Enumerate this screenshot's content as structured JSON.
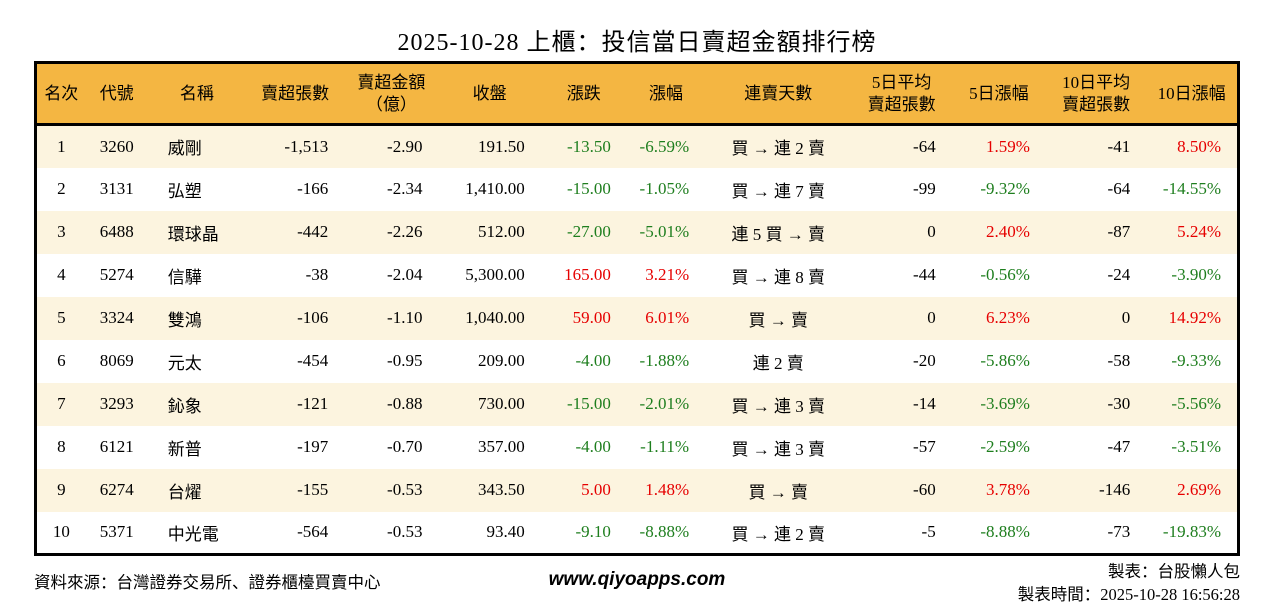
{
  "page": {
    "title": "2025-10-28 上櫃：投信當日賣超金額排行榜"
  },
  "colors": {
    "header_bg": "#F4B642",
    "row_alt_bg": "#FCF4DF",
    "up_red": "#E60000",
    "down_green": "#1E7E1E",
    "border": "#000000"
  },
  "table": {
    "columns": [
      {
        "key": "rank",
        "label": "名次",
        "align": "center"
      },
      {
        "key": "code",
        "label": "代號",
        "align": "center"
      },
      {
        "key": "name",
        "label": "名稱",
        "align": "left"
      },
      {
        "key": "net-sell-volume",
        "label": "賣超張數",
        "align": "right"
      },
      {
        "key": "net-sell-amount",
        "label": "賣超金額\n（億）",
        "align": "right"
      },
      {
        "key": "close",
        "label": "收盤",
        "align": "right"
      },
      {
        "key": "change",
        "label": "漲跌",
        "align": "right"
      },
      {
        "key": "change-pct",
        "label": "漲幅",
        "align": "right"
      },
      {
        "key": "sell-streak",
        "label": "連賣天數",
        "align": "center"
      },
      {
        "key": "avg5-volume",
        "label": "5日平均\n賣超張數",
        "align": "right"
      },
      {
        "key": "chg5-pct",
        "label": "5日漲幅",
        "align": "right"
      },
      {
        "key": "avg10-volume",
        "label": "10日平均\n賣超張數",
        "align": "right"
      },
      {
        "key": "chg10-pct",
        "label": "10日漲幅",
        "align": "right"
      }
    ],
    "signed_color_columns": [
      6,
      7,
      10,
      12
    ],
    "rows": [
      [
        "1",
        "3260",
        "威剛",
        "-1,513",
        "-2.90",
        "191.50",
        "-13.50",
        "-6.59%",
        "買 → 連 2 賣",
        "-64",
        "1.59%",
        "-41",
        "8.50%"
      ],
      [
        "2",
        "3131",
        "弘塑",
        "-166",
        "-2.34",
        "1,410.00",
        "-15.00",
        "-1.05%",
        "買 → 連 7 賣",
        "-99",
        "-9.32%",
        "-64",
        "-14.55%"
      ],
      [
        "3",
        "6488",
        "環球晶",
        "-442",
        "-2.26",
        "512.00",
        "-27.00",
        "-5.01%",
        "連 5 買 → 賣",
        "0",
        "2.40%",
        "-87",
        "5.24%"
      ],
      [
        "4",
        "5274",
        "信驊",
        "-38",
        "-2.04",
        "5,300.00",
        "165.00",
        "3.21%",
        "買 → 連 8 賣",
        "-44",
        "-0.56%",
        "-24",
        "-3.90%"
      ],
      [
        "5",
        "3324",
        "雙鴻",
        "-106",
        "-1.10",
        "1,040.00",
        "59.00",
        "6.01%",
        "買 → 賣",
        "0",
        "6.23%",
        "0",
        "14.92%"
      ],
      [
        "6",
        "8069",
        "元太",
        "-454",
        "-0.95",
        "209.00",
        "-4.00",
        "-1.88%",
        "連 2 賣",
        "-20",
        "-5.86%",
        "-58",
        "-9.33%"
      ],
      [
        "7",
        "3293",
        "鈊象",
        "-121",
        "-0.88",
        "730.00",
        "-15.00",
        "-2.01%",
        "買 → 連 3 賣",
        "-14",
        "-3.69%",
        "-30",
        "-5.56%"
      ],
      [
        "8",
        "6121",
        "新普",
        "-197",
        "-0.70",
        "357.00",
        "-4.00",
        "-1.11%",
        "買 → 連 3 賣",
        "-57",
        "-2.59%",
        "-47",
        "-3.51%"
      ],
      [
        "9",
        "6274",
        "台燿",
        "-155",
        "-0.53",
        "343.50",
        "5.00",
        "1.48%",
        "買 → 賣",
        "-60",
        "3.78%",
        "-146",
        "2.69%"
      ],
      [
        "10",
        "5371",
        "中光電",
        "-564",
        "-0.53",
        "93.40",
        "-9.10",
        "-8.88%",
        "買 → 連 2 賣",
        "-5",
        "-8.88%",
        "-73",
        "-19.83%"
      ]
    ]
  },
  "footer": {
    "source": "資料來源：台灣證券交易所、證券櫃檯買賣中心",
    "website": "www.qiyoapps.com",
    "credit": "製表：台股懶人包",
    "generated": "製表時間：2025-10-28 16:56:28"
  }
}
